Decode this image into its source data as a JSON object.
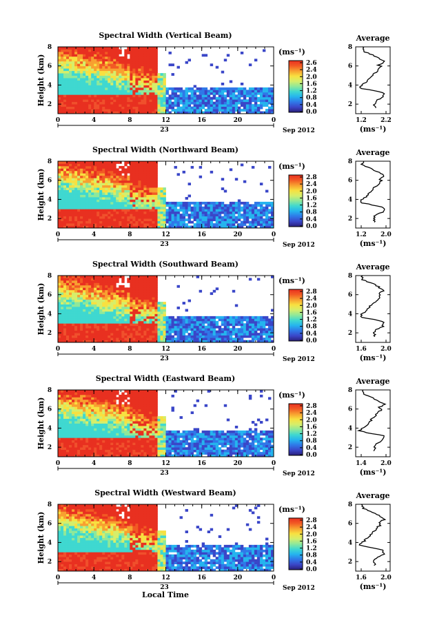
{
  "colors": {
    "colormap": [
      "#2a1f7a",
      "#3a46c8",
      "#2f78e8",
      "#25b4ee",
      "#3fd8d0",
      "#8ee89a",
      "#d6ee6a",
      "#f8e040",
      "#f8a030",
      "#f25a24",
      "#e83020"
    ],
    "heatmap_high": "#f2402c",
    "heatmap_low": "#3a5ce0",
    "line": "#000000"
  },
  "chart_data": [
    {
      "type": "heatmap",
      "title": "Spectral Width (Vertical Beam)",
      "ylabel": "Height (km)",
      "ylim": [
        1,
        8
      ],
      "yticks": [
        "2",
        "4",
        "6",
        "8"
      ],
      "xticks": [
        "0",
        "4",
        "8",
        "12",
        "16",
        "20",
        "0"
      ],
      "date_tick": "23",
      "date_label": "Sep 2012",
      "colorbar": {
        "unit": "(ms⁻¹)",
        "ticks": [
          "2.6",
          "2.4",
          "2.0",
          "1.6",
          "1.2",
          "0.8",
          "0.4",
          "0.0"
        ]
      },
      "average_profile": {
        "title": "Average",
        "xlabel": "(ms⁻¹)",
        "xticks": [
          "1.2",
          "2.2"
        ],
        "yticks": [
          "2",
          "4",
          "6",
          "8"
        ]
      }
    },
    {
      "type": "heatmap",
      "title": "Spectral Width (Northward Beam)",
      "ylabel": "Height (km)",
      "ylim": [
        1,
        8
      ],
      "yticks": [
        "2",
        "4",
        "6",
        "8"
      ],
      "xticks": [
        "0",
        "4",
        "8",
        "12",
        "16",
        "20",
        "0"
      ],
      "date_tick": "23",
      "date_label": "Sep 2012",
      "colorbar": {
        "unit": "(ms⁻¹)",
        "ticks": [
          "2.8",
          "2.4",
          "2.0",
          "1.6",
          "1.2",
          "0.8",
          "0.4",
          "0.0"
        ]
      },
      "average_profile": {
        "title": "Average",
        "xlabel": "(ms⁻¹)",
        "xticks": [
          "1.2",
          "2.0"
        ],
        "yticks": [
          "2",
          "4",
          "6",
          "8"
        ]
      }
    },
    {
      "type": "heatmap",
      "title": "Spectral Width (Southward Beam)",
      "ylabel": "Height (km)",
      "ylim": [
        1,
        8
      ],
      "yticks": [
        "2",
        "4",
        "6",
        "8"
      ],
      "xticks": [
        "0",
        "4",
        "8",
        "12",
        "16",
        "20",
        "0"
      ],
      "date_tick": "23",
      "date_label": "Sep 2012",
      "colorbar": {
        "unit": "(ms⁻¹)",
        "ticks": [
          "2.8",
          "2.4",
          "2.0",
          "1.6",
          "1.2",
          "0.8",
          "0.4",
          "0.0"
        ]
      },
      "average_profile": {
        "title": "Average",
        "xlabel": "(ms⁻¹)",
        "xticks": [
          "1.6",
          "2.0"
        ],
        "yticks": [
          "2",
          "4",
          "6",
          "8"
        ]
      }
    },
    {
      "type": "heatmap",
      "title": "Spectral Width (Eastward Beam)",
      "ylabel": "Height (km)",
      "ylim": [
        1,
        8
      ],
      "yticks": [
        "2",
        "4",
        "6",
        "8"
      ],
      "xticks": [
        "0",
        "4",
        "8",
        "12",
        "16",
        "20",
        "0"
      ],
      "date_tick": "23",
      "date_label": "Sep 2012",
      "colorbar": {
        "unit": "(ms⁻¹)",
        "ticks": [
          "2.8",
          "2.4",
          "2.0",
          "1.6",
          "1.2",
          "0.8",
          "0.4",
          "0.0"
        ]
      },
      "average_profile": {
        "title": "Average",
        "xlabel": "(ms⁻¹)",
        "xticks": [
          "1.4",
          "2.0"
        ],
        "yticks": [
          "2",
          "4",
          "6",
          "8"
        ]
      }
    },
    {
      "type": "heatmap",
      "title": "Spectral Width (Westward Beam)",
      "ylabel": "Height (km)",
      "ylim": [
        1,
        8
      ],
      "yticks": [
        "2",
        "4",
        "6",
        "8"
      ],
      "xticks": [
        "0",
        "4",
        "8",
        "12",
        "16",
        "20",
        "0"
      ],
      "date_tick": "23",
      "date_label": "Sep 2012",
      "xlabel": "Local Time",
      "colorbar": {
        "unit": "(ms⁻¹)",
        "ticks": [
          "2.8",
          "2.4",
          "2.0",
          "1.6",
          "1.2",
          "0.8",
          "0.4",
          "0.0"
        ]
      },
      "average_profile": {
        "title": "Average",
        "xlabel": "(ms⁻¹)",
        "xticks": [
          "1.6",
          "2.0"
        ],
        "yticks": [
          "2",
          "4",
          "6",
          "8"
        ]
      }
    }
  ]
}
